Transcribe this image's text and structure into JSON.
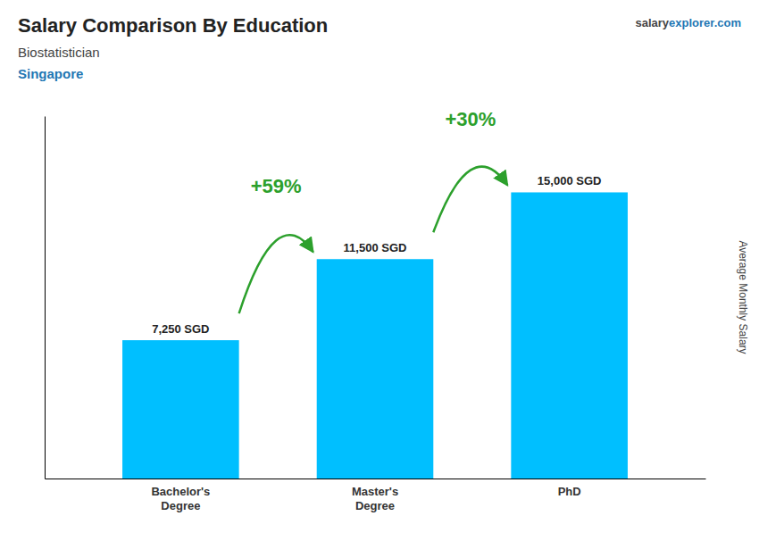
{
  "chart_data": {
    "type": "bar",
    "title": "Salary Comparison By Education",
    "subtitle": [
      "Biostatistician",
      "Singapore"
    ],
    "watermark": [
      "salary",
      "explorer.com"
    ],
    "y_label": "Average Monthly Salary",
    "categories": [
      "Bachelor's\nDegree",
      "Master's\nDegree",
      "PhD"
    ],
    "values": [
      7250,
      11500,
      15000
    ],
    "value_labels": [
      "7,250 SGD",
      "11,500 SGD",
      "15,000 SGD"
    ],
    "data_labels": true,
    "annotations": [
      "+59%",
      "+30%"
    ],
    "color": "#00BFFF",
    "ylim": [
      0,
      19000
    ],
    "tick_labels": "x",
    "grid": false
  }
}
